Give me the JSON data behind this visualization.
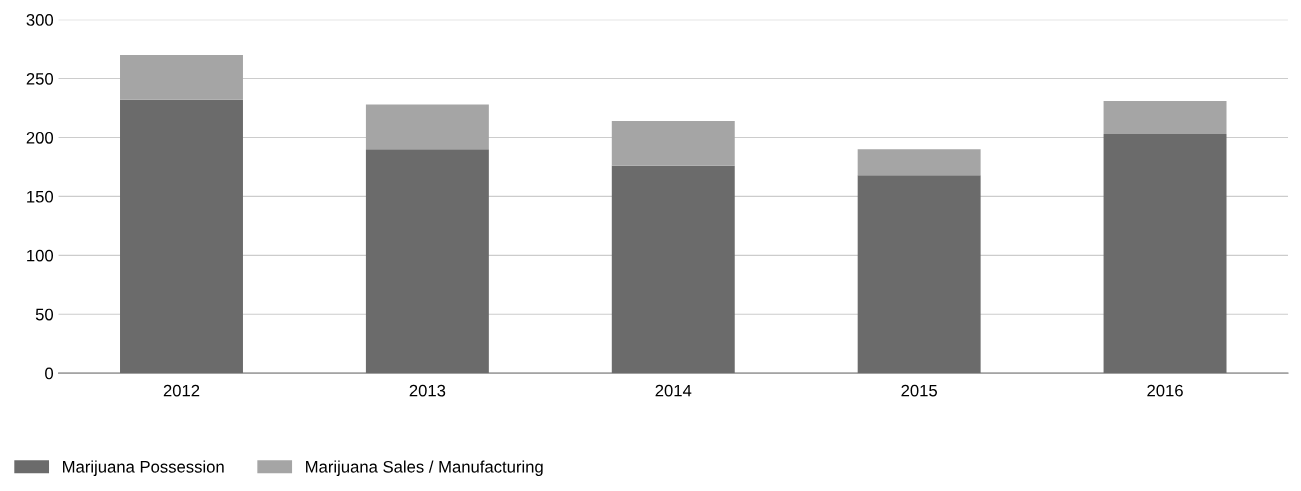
{
  "chart_data": {
    "type": "bar",
    "stacked": true,
    "categories": [
      "2012",
      "2013",
      "2014",
      "2015",
      "2016"
    ],
    "series": [
      {
        "name": "Marijuana Possession",
        "color": "#6b6b6b",
        "values": [
          232,
          190,
          176,
          168,
          203
        ]
      },
      {
        "name": "Marijuana Sales / Manufacturing",
        "color": "#a5a5a5",
        "values": [
          38,
          38,
          38,
          22,
          28
        ]
      }
    ],
    "ylim": [
      0,
      300
    ],
    "yticks": [
      0,
      50,
      100,
      150,
      200,
      250,
      300
    ],
    "grid": "y",
    "legend": "bottom left"
  }
}
